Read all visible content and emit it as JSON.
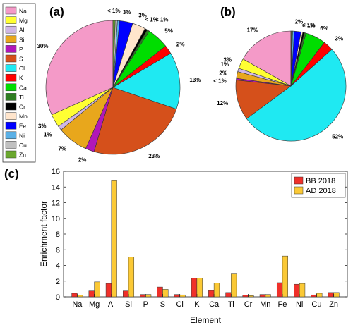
{
  "legend": {
    "entries": [
      "Na",
      "Mg",
      "Al",
      "Si",
      "P",
      "S",
      "Cl",
      "K",
      "Ca",
      "Ti",
      "Cr",
      "Mn",
      "Fe",
      "Ni",
      "Cu",
      "Zn"
    ],
    "colors": [
      "#f49ac8",
      "#ffff33",
      "#cfb7e6",
      "#e8a71c",
      "#b117b8",
      "#d5501b",
      "#1fe9f2",
      "#ff0000",
      "#00dd00",
      "#2e7d21",
      "#000000",
      "#ffe5cc",
      "#0000ff",
      "#5ab0e6",
      "#c0c0c0",
      "#6aa72e"
    ]
  },
  "chart_data": [
    {
      "type": "pie",
      "panel_label": "(a)",
      "categories": [
        "Na",
        "Mg",
        "Al",
        "Si",
        "P",
        "S",
        "Cl",
        "K",
        "Ca",
        "Ti",
        "Cr",
        "Mn",
        "Fe",
        "Ni",
        "Cu",
        "Zn"
      ],
      "values": [
        30,
        3,
        1,
        7,
        2,
        23,
        13,
        2,
        5,
        0.5,
        0.6,
        3,
        3,
        0.5,
        0.5,
        0.5
      ],
      "slice_labels": [
        "30%",
        "3%",
        "1%",
        "7%",
        "2%",
        "23%",
        "13%",
        "2%",
        "5%",
        "< 1%",
        "< 1%",
        "3%",
        "3%",
        "",
        "< 1%",
        ""
      ]
    },
    {
      "type": "pie",
      "panel_label": "(b)",
      "categories": [
        "Na",
        "Mg",
        "Al",
        "Si",
        "P",
        "S",
        "Cl",
        "K",
        "Ca",
        "Ti",
        "Cr",
        "Mn",
        "Fe",
        "Ni",
        "Cu",
        "Zn"
      ],
      "values": [
        17,
        3,
        1,
        2,
        0.5,
        12,
        52,
        3,
        6,
        0.5,
        0.5,
        0.5,
        2,
        0.5,
        0.3,
        0.2
      ],
      "slice_labels": [
        "17%",
        "3%",
        "1%",
        "2%",
        "< 1%",
        "12%",
        "52%",
        "3%",
        "6%",
        "< 1%",
        "< 1%",
        "",
        "2%",
        "",
        "",
        ""
      ]
    },
    {
      "type": "bar",
      "panel_label": "(c)",
      "categories": [
        "Na",
        "Mg",
        "Al",
        "Si",
        "P",
        "S",
        "Cl",
        "K",
        "Ca",
        "Ti",
        "Cr",
        "Mn",
        "Fe",
        "Ni",
        "Cu",
        "Zn"
      ],
      "series": [
        {
          "name": "BB 2018",
          "color": "#f0302a",
          "values": [
            0.45,
            0.75,
            1.7,
            0.75,
            0.3,
            1.25,
            0.3,
            2.4,
            0.8,
            0.55,
            0.2,
            0.3,
            1.8,
            1.6,
            0.25,
            0.55
          ]
        },
        {
          "name": "AD 2018",
          "color": "#fbc935",
          "values": [
            0.2,
            1.9,
            14.8,
            5.1,
            0.3,
            0.95,
            0.25,
            2.4,
            1.75,
            3.0,
            0.15,
            0.3,
            5.2,
            1.7,
            0.45,
            0.55
          ]
        }
      ],
      "xlabel": "Element",
      "ylabel": "Enrichment factor",
      "ylim": [
        0,
        16
      ],
      "yticks": [
        0,
        2,
        4,
        6,
        8,
        10,
        12,
        14,
        16
      ],
      "legend_position": "top-right",
      "grid": false
    }
  ]
}
